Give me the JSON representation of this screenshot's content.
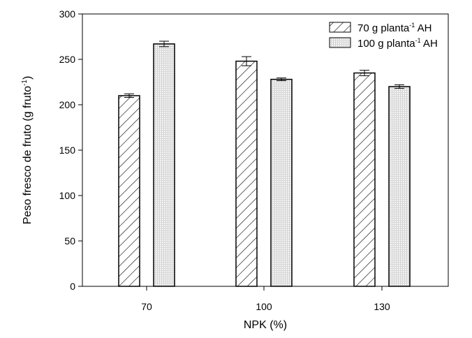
{
  "chart_data": {
    "type": "bar",
    "title": "",
    "xlabel": "NPK (%)",
    "ylabel": "Peso fresco de fruto (g fruto-1)",
    "ylabel_main": "Peso fresco de fruto (g fruto",
    "ylabel_sup": "-1",
    "ylabel_end": ")",
    "ylim": [
      0,
      300
    ],
    "yticks": [
      "0",
      "50",
      "100",
      "150",
      "200",
      "250",
      "300"
    ],
    "categories": [
      "70",
      "100",
      "130"
    ],
    "legend_position": "top-right",
    "series": [
      {
        "name": "70 g planta-1 AH",
        "label_main": "70 g planta",
        "label_sup": "-1",
        "label_end": " AH",
        "pattern": "hatch",
        "values": [
          210,
          248,
          235
        ],
        "errors": [
          2,
          5,
          3
        ]
      },
      {
        "name": "100 g planta-1 AH",
        "label_main": "100 g planta",
        "label_sup": "-1",
        "label_end": " AH",
        "pattern": "dots",
        "values": [
          267,
          228,
          220
        ],
        "errors": [
          3,
          1.5,
          2
        ]
      }
    ]
  }
}
